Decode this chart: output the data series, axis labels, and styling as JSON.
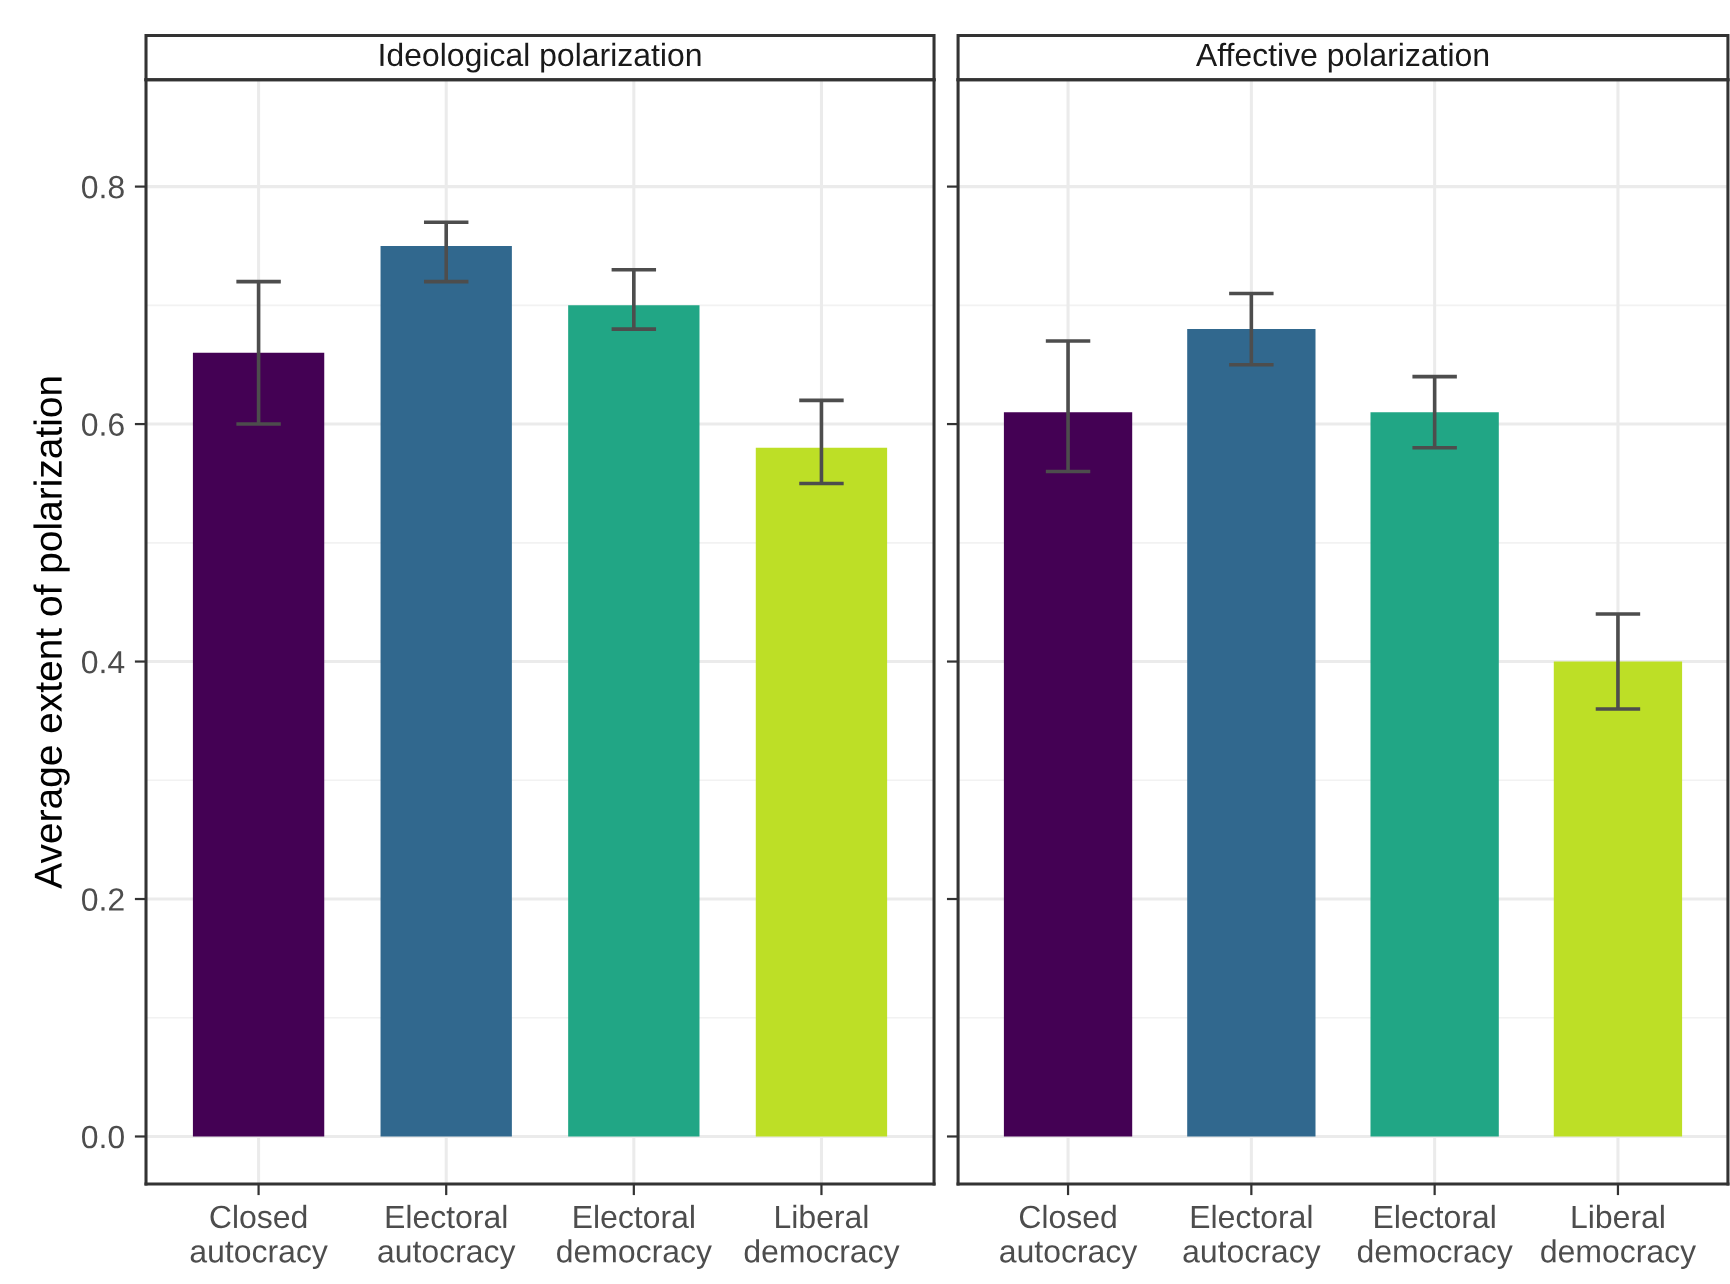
{
  "chart_data": [
    {
      "type": "bar",
      "title": "Ideological polarization",
      "ylabel": "Average extent of polarization",
      "categories": [
        "Closed\nautocracy",
        "Electoral\nautocracy",
        "Electoral\ndemocracy",
        "Liberal\ndemocracy"
      ],
      "values": [
        0.66,
        0.75,
        0.7,
        0.58
      ],
      "errors": [
        [
          0.6,
          0.72
        ],
        [
          0.72,
          0.77
        ],
        [
          0.68,
          0.73
        ],
        [
          0.55,
          0.62
        ]
      ],
      "colors": [
        "#440154",
        "#31688e",
        "#21a685",
        "#bddf26"
      ],
      "ylim": [
        -0.04,
        0.89
      ],
      "yticks": [
        {
          "value": 0,
          "label": "0.0"
        },
        0.2,
        0.4,
        0.6,
        0.8
      ],
      "grid": true
    },
    {
      "type": "bar",
      "title": "Affective polarization",
      "categories": [
        "Closed\nautocracy",
        "Electoral\nautocracy",
        "Electoral\ndemocracy",
        "Liberal\ndemocracy"
      ],
      "values": [
        0.61,
        0.68,
        0.61,
        0.4
      ],
      "errors": [
        [
          0.56,
          0.67
        ],
        [
          0.65,
          0.71
        ],
        [
          0.58,
          0.64
        ],
        [
          0.36,
          0.44
        ]
      ],
      "colors": [
        "#440154",
        "#31688e",
        "#21a685",
        "#bddf26"
      ],
      "ylim": [
        -0.04,
        0.89
      ],
      "yticks": [
        0,
        0.2,
        0.4,
        0.6,
        0.8
      ],
      "grid": true,
      "tick_labels": "x"
    }
  ]
}
